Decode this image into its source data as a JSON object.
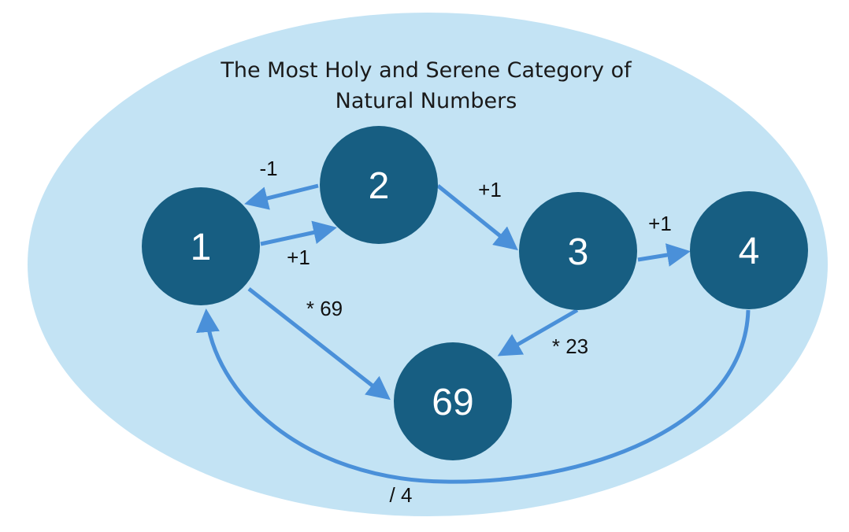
{
  "category": {
    "title_line1": "The Most Holy and Serene Category of",
    "title_line2": "Natural Numbers"
  },
  "colors": {
    "background_ellipse": "#c3e3f4",
    "node_fill": "#175e82",
    "node_text": "#ffffff",
    "arrow": "#4a90d9",
    "label_text": "#111111"
  },
  "nodes": [
    {
      "id": "n1",
      "label": "1"
    },
    {
      "id": "n2",
      "label": "2"
    },
    {
      "id": "n3",
      "label": "3"
    },
    {
      "id": "n4",
      "label": "4"
    },
    {
      "id": "n69",
      "label": "69"
    }
  ],
  "edges": [
    {
      "id": "e-2-1",
      "from": "2",
      "to": "1",
      "label": "-1"
    },
    {
      "id": "e-1-2",
      "from": "1",
      "to": "2",
      "label": "+1"
    },
    {
      "id": "e-2-3",
      "from": "2",
      "to": "3",
      "label": "+1"
    },
    {
      "id": "e-3-4",
      "from": "3",
      "to": "4",
      "label": "+1"
    },
    {
      "id": "e-1-69",
      "from": "1",
      "to": "69",
      "label": "* 69"
    },
    {
      "id": "e-3-69",
      "from": "3",
      "to": "69",
      "label": "* 23"
    },
    {
      "id": "e-4-1",
      "from": "4",
      "to": "1",
      "label": "/ 4"
    }
  ]
}
